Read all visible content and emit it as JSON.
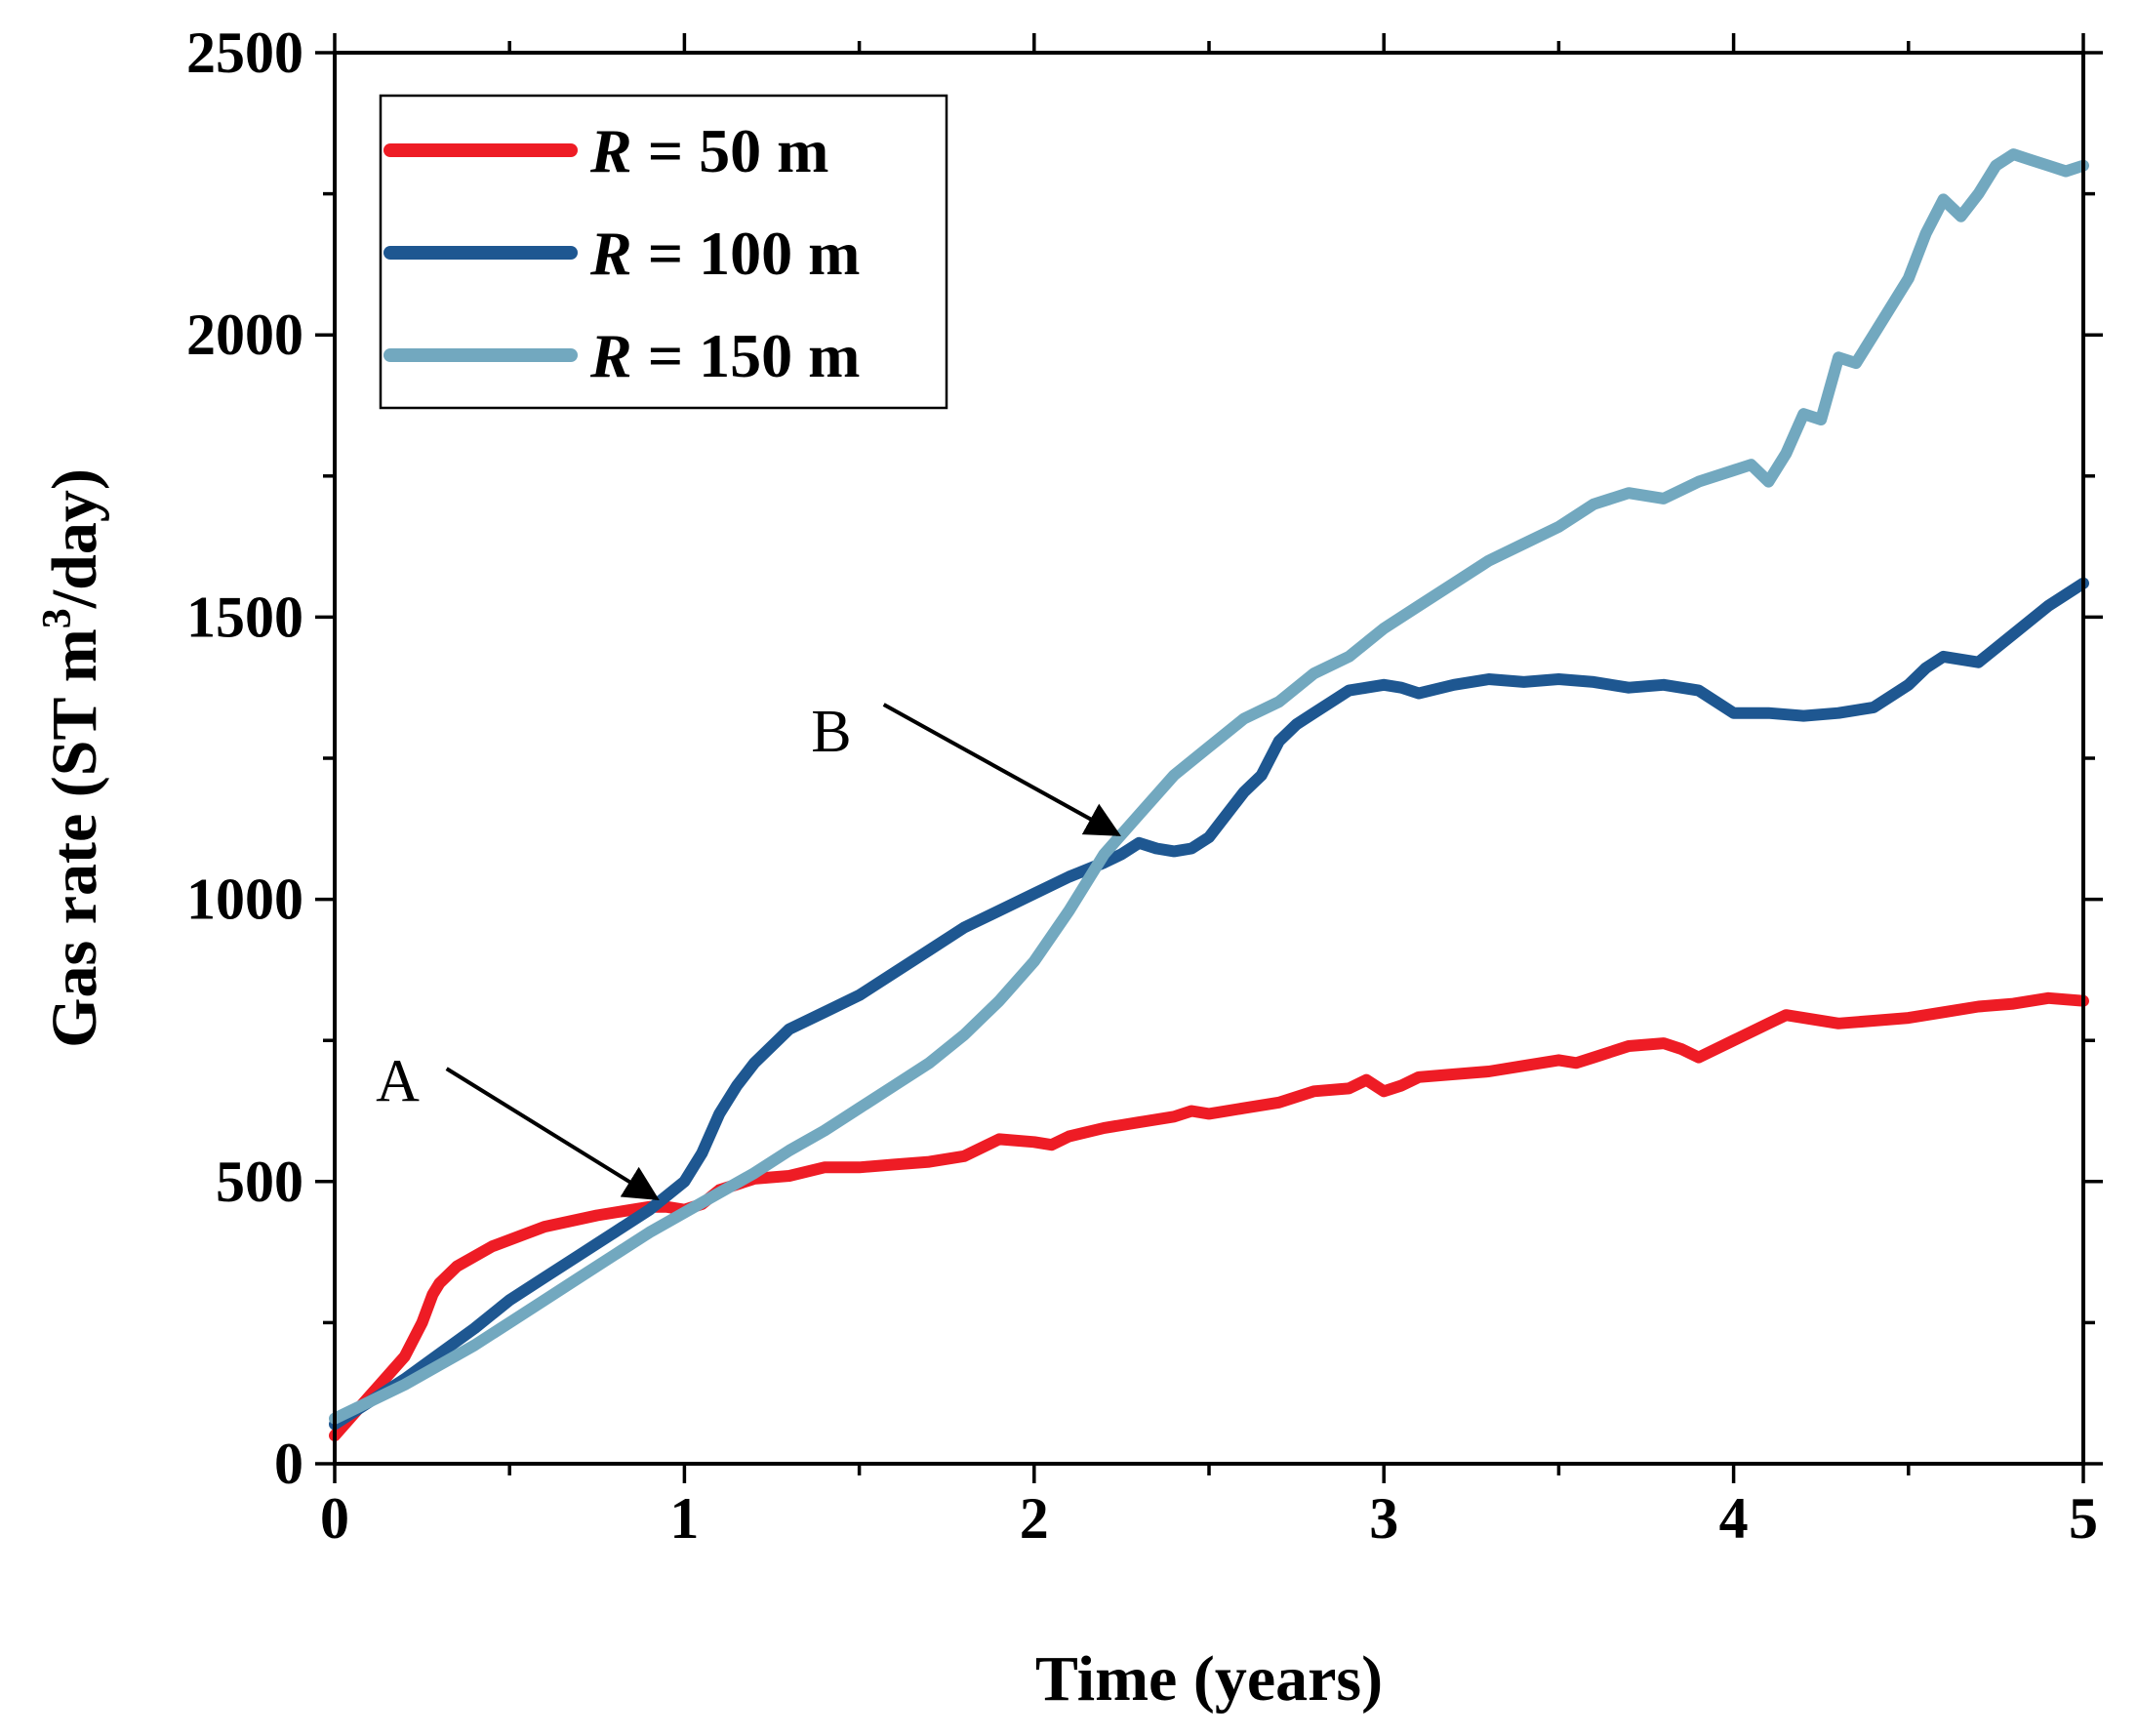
{
  "chart_data": {
    "type": "line",
    "xlabel": "Time (years)",
    "ylabel_prefix": "Gas rate (ST m",
    "ylabel_sup": "3",
    "ylabel_suffix": "/day)",
    "xlim": [
      0,
      5
    ],
    "ylim": [
      0,
      2500
    ],
    "x_ticks": [
      0,
      1,
      2,
      3,
      4,
      5
    ],
    "y_ticks": [
      0,
      500,
      1000,
      1500,
      2000,
      2500
    ],
    "x_tick_labels": [
      "0",
      "1",
      "2",
      "3",
      "4",
      "5"
    ],
    "y_tick_labels": [
      "0",
      "500",
      "1000",
      "1500",
      "2000",
      "2500"
    ],
    "grid": false,
    "legend_position": "top-left",
    "series": [
      {
        "name": "R = 50 m",
        "legend_var": "R",
        "legend_rest": " = 50 m",
        "color": "#ee1c25",
        "x": [
          0,
          0.1,
          0.2,
          0.25,
          0.28,
          0.3,
          0.35,
          0.45,
          0.6,
          0.75,
          0.85,
          0.9,
          0.95,
          1.0,
          1.05,
          1.1,
          1.2,
          1.3,
          1.4,
          1.5,
          1.6,
          1.7,
          1.8,
          1.9,
          2.0,
          2.05,
          2.1,
          2.2,
          2.3,
          2.4,
          2.45,
          2.5,
          2.6,
          2.7,
          2.8,
          2.9,
          2.95,
          3.0,
          3.05,
          3.1,
          3.2,
          3.3,
          3.4,
          3.5,
          3.55,
          3.6,
          3.7,
          3.8,
          3.85,
          3.9,
          4.0,
          4.1,
          4.15,
          4.2,
          4.3,
          4.4,
          4.5,
          4.6,
          4.7,
          4.8,
          4.9,
          5.0
        ],
        "y": [
          50,
          120,
          190,
          250,
          300,
          320,
          350,
          385,
          420,
          440,
          450,
          455,
          455,
          450,
          460,
          485,
          505,
          510,
          525,
          525,
          530,
          535,
          545,
          575,
          570,
          565,
          580,
          595,
          605,
          615,
          625,
          620,
          630,
          640,
          660,
          665,
          680,
          660,
          670,
          685,
          690,
          695,
          705,
          715,
          710,
          720,
          740,
          745,
          735,
          720,
          750,
          780,
          795,
          790,
          780,
          785,
          790,
          800,
          810,
          815,
          825,
          820
        ]
      },
      {
        "name": "R = 100 m",
        "legend_var": "R",
        "legend_rest": " = 100 m",
        "color": "#1e5791",
        "x": [
          0,
          0.1,
          0.2,
          0.3,
          0.4,
          0.5,
          0.6,
          0.7,
          0.8,
          0.9,
          1.0,
          1.05,
          1.1,
          1.15,
          1.2,
          1.3,
          1.4,
          1.5,
          1.6,
          1.7,
          1.8,
          1.9,
          2.0,
          2.1,
          2.2,
          2.25,
          2.3,
          2.35,
          2.4,
          2.45,
          2.5,
          2.55,
          2.6,
          2.65,
          2.7,
          2.75,
          2.8,
          2.85,
          2.9,
          2.95,
          3.0,
          3.05,
          3.1,
          3.2,
          3.3,
          3.4,
          3.5,
          3.6,
          3.7,
          3.8,
          3.9,
          4.0,
          4.1,
          4.2,
          4.3,
          4.4,
          4.5,
          4.55,
          4.6,
          4.7,
          4.8,
          4.9,
          5.0
        ],
        "y": [
          70,
          110,
          150,
          195,
          240,
          290,
          330,
          370,
          410,
          450,
          500,
          550,
          620,
          670,
          710,
          770,
          800,
          830,
          870,
          910,
          950,
          980,
          1010,
          1040,
          1065,
          1080,
          1100,
          1090,
          1085,
          1090,
          1110,
          1150,
          1190,
          1220,
          1280,
          1310,
          1330,
          1350,
          1370,
          1375,
          1380,
          1375,
          1365,
          1380,
          1390,
          1385,
          1390,
          1385,
          1375,
          1380,
          1370,
          1330,
          1330,
          1325,
          1330,
          1340,
          1380,
          1410,
          1430,
          1420,
          1470,
          1520,
          1560
        ]
      },
      {
        "name": "R = 150 m",
        "legend_var": "R",
        "legend_rest": " = 150 m",
        "color": "#72a8bf",
        "x": [
          0,
          0.1,
          0.2,
          0.3,
          0.4,
          0.5,
          0.6,
          0.7,
          0.8,
          0.9,
          1.0,
          1.1,
          1.2,
          1.3,
          1.4,
          1.5,
          1.6,
          1.7,
          1.8,
          1.9,
          2.0,
          2.1,
          2.2,
          2.3,
          2.4,
          2.5,
          2.6,
          2.7,
          2.8,
          2.9,
          3.0,
          3.1,
          3.2,
          3.3,
          3.4,
          3.5,
          3.6,
          3.7,
          3.8,
          3.9,
          4.0,
          4.05,
          4.1,
          4.15,
          4.2,
          4.25,
          4.3,
          4.35,
          4.4,
          4.5,
          4.55,
          4.6,
          4.65,
          4.7,
          4.75,
          4.8,
          4.85,
          4.9,
          4.95,
          5.0
        ],
        "y": [
          80,
          110,
          140,
          175,
          210,
          250,
          290,
          330,
          370,
          410,
          445,
          480,
          515,
          555,
          590,
          630,
          670,
          710,
          760,
          820,
          890,
          980,
          1080,
          1150,
          1220,
          1270,
          1320,
          1350,
          1400,
          1430,
          1480,
          1520,
          1560,
          1600,
          1630,
          1660,
          1700,
          1720,
          1710,
          1740,
          1760,
          1770,
          1740,
          1790,
          1860,
          1850,
          1960,
          1950,
          2000,
          2100,
          2180,
          2240,
          2210,
          2250,
          2300,
          2320,
          2310,
          2300,
          2290,
          2300
        ]
      }
    ],
    "annotations": [
      {
        "label": "A",
        "text_x": 0.18,
        "text_y": 680,
        "arrow_from_x": 0.32,
        "arrow_from_y": 700,
        "arrow_to_x": 0.92,
        "arrow_to_y": 470
      },
      {
        "label": "B",
        "text_x": 1.42,
        "text_y": 1300,
        "arrow_from_x": 1.57,
        "arrow_from_y": 1345,
        "arrow_to_x": 2.24,
        "arrow_to_y": 1115
      }
    ]
  }
}
